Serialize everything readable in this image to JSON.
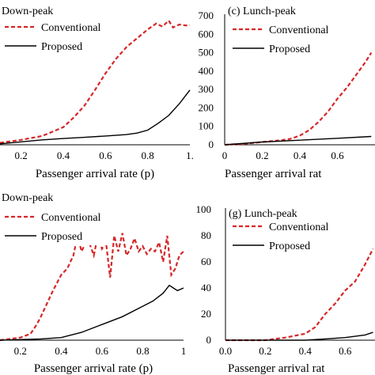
{
  "chart_data": [
    {
      "type": "line",
      "title": "Down-peak",
      "xlabel": "Passenger arrival rate (p)",
      "ylabel": "",
      "xlim": [
        0.1,
        1.0
      ],
      "ylim": [
        0,
        700
      ],
      "x_ticks": [
        "0.2",
        "0.4",
        "0.6",
        "0.8",
        "1."
      ],
      "y_ticks": [],
      "legend": "top-left",
      "series": [
        {
          "name": "Conventional",
          "color": "#d62728",
          "style": "dashed",
          "x": [
            0.1,
            0.2,
            0.3,
            0.4,
            0.45,
            0.5,
            0.55,
            0.6,
            0.65,
            0.7,
            0.75,
            0.8,
            0.84,
            0.87,
            0.9,
            0.92,
            0.95,
            0.98,
            1.0
          ],
          "y": [
            10,
            25,
            45,
            90,
            140,
            200,
            280,
            365,
            440,
            500,
            545,
            590,
            620,
            605,
            635,
            600,
            615,
            610,
            612
          ]
        },
        {
          "name": "Proposed",
          "color": "#000000",
          "style": "solid",
          "x": [
            0.1,
            0.2,
            0.3,
            0.4,
            0.5,
            0.6,
            0.7,
            0.75,
            0.8,
            0.85,
            0.9,
            0.95,
            1.0
          ],
          "y": [
            5,
            15,
            25,
            32,
            38,
            45,
            52,
            60,
            75,
            110,
            150,
            210,
            280
          ]
        }
      ]
    },
    {
      "type": "line",
      "title": "(c) Lunch-peak",
      "xlabel": "Passenger arrival rat",
      "ylabel": "",
      "xlim": [
        0,
        0.8
      ],
      "ylim": [
        0,
        700
      ],
      "x_ticks": [
        "0",
        "0.2",
        "0.4",
        "0.6"
      ],
      "y_ticks": [
        "0",
        "100",
        "200",
        "300",
        "400",
        "500",
        "600",
        "700"
      ],
      "legend": "top-left",
      "series": [
        {
          "name": "Conventional",
          "color": "#d62728",
          "style": "dashed",
          "x": [
            0.0,
            0.1,
            0.2,
            0.3,
            0.35,
            0.4,
            0.45,
            0.5,
            0.55,
            0.6,
            0.65,
            0.7,
            0.75,
            0.78
          ],
          "y": [
            0,
            5,
            15,
            25,
            32,
            50,
            80,
            125,
            180,
            250,
            310,
            380,
            450,
            500
          ]
        },
        {
          "name": "Proposed",
          "color": "#000000",
          "style": "solid",
          "x": [
            0.0,
            0.2,
            0.4,
            0.6,
            0.78
          ],
          "y": [
            0,
            15,
            25,
            35,
            45
          ]
        }
      ]
    },
    {
      "type": "line",
      "title": "Down-peak",
      "xlabel": "Passenger arrival rate (p)",
      "ylabel": "",
      "xlim": [
        0.1,
        1.0
      ],
      "ylim": [
        0,
        100
      ],
      "x_ticks": [
        "0.2",
        "0.4",
        "0.6",
        "0.8",
        "1"
      ],
      "y_ticks": [],
      "legend": "top-left",
      "series": [
        {
          "name": "Conventional",
          "color": "#d62728",
          "style": "dashed",
          "x": [
            0.1,
            0.2,
            0.25,
            0.28,
            0.3,
            0.33,
            0.36,
            0.4,
            0.43,
            0.46,
            0.48,
            0.5,
            0.53,
            0.56,
            0.58,
            0.6,
            0.62,
            0.64,
            0.66,
            0.68,
            0.7,
            0.72,
            0.74,
            0.76,
            0.78,
            0.8,
            0.82,
            0.84,
            0.86,
            0.88,
            0.9,
            0.92,
            0.94,
            0.96,
            0.98,
            1.0
          ],
          "y": [
            0,
            2,
            5,
            12,
            18,
            28,
            38,
            50,
            55,
            65,
            80,
            68,
            78,
            65,
            80,
            70,
            75,
            48,
            80,
            68,
            82,
            65,
            70,
            78,
            68,
            72,
            66,
            70,
            68,
            75,
            60,
            80,
            50,
            55,
            65,
            68
          ]
        },
        {
          "name": "Proposed",
          "color": "#000000",
          "style": "solid",
          "x": [
            0.1,
            0.3,
            0.4,
            0.5,
            0.6,
            0.7,
            0.8,
            0.85,
            0.9,
            0.93,
            0.95,
            0.97,
            1.0
          ],
          "y": [
            0,
            1,
            2,
            6,
            12,
            18,
            26,
            30,
            36,
            42,
            40,
            38,
            40
          ]
        }
      ]
    },
    {
      "type": "line",
      "title": "(g) Lunch-peak",
      "xlabel": "Passenger arrival rat",
      "ylabel": "",
      "xlim": [
        0,
        0.75
      ],
      "ylim": [
        0,
        100
      ],
      "x_ticks": [
        "0.0",
        "0.2",
        "0.4",
        "0.6"
      ],
      "y_ticks": [
        "0",
        "20",
        "40",
        "60",
        "80",
        "100"
      ],
      "legend": "top-left",
      "series": [
        {
          "name": "Conventional",
          "color": "#d62728",
          "style": "dashed",
          "x": [
            0.0,
            0.2,
            0.3,
            0.4,
            0.45,
            0.5,
            0.55,
            0.6,
            0.65,
            0.7,
            0.74
          ],
          "y": [
            0,
            0,
            2,
            5,
            10,
            20,
            28,
            38,
            45,
            58,
            70
          ]
        },
        {
          "name": "Proposed",
          "color": "#000000",
          "style": "solid",
          "x": [
            0.0,
            0.4,
            0.5,
            0.6,
            0.7,
            0.74
          ],
          "y": [
            0,
            0,
            1,
            2,
            4,
            6
          ]
        }
      ]
    }
  ]
}
